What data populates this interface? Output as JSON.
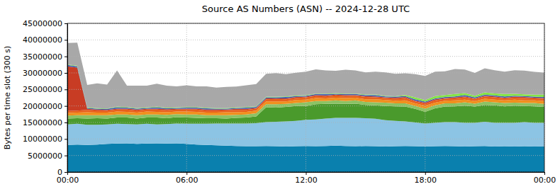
{
  "chart_data": {
    "type": "area",
    "stacked": true,
    "grid": true,
    "title": "Source AS Numbers (ASN) -- 2024-12-28 UTC",
    "y_label": "Bytes per time slot (300 s)",
    "xlim": [
      0,
      24
    ],
    "xticks": [
      {
        "value": 0,
        "label": "00:00"
      },
      {
        "value": 6,
        "label": "06:00"
      },
      {
        "value": 12,
        "label": "12:00"
      },
      {
        "value": 18,
        "label": "18:00"
      },
      {
        "value": 24,
        "label": "00:00"
      }
    ],
    "ylim": [
      0,
      45000000
    ],
    "yticks": [
      0,
      5000000,
      10000000,
      15000000,
      20000000,
      25000000,
      30000000,
      35000000,
      40000000,
      45000000
    ],
    "x": [
      0,
      0.5,
      1,
      1.5,
      2,
      2.5,
      3,
      3.5,
      4,
      4.5,
      5,
      5.5,
      6,
      6.5,
      7,
      7.5,
      8,
      8.5,
      9,
      9.5,
      10,
      10.5,
      11,
      11.5,
      12,
      12.5,
      13,
      13.5,
      14,
      14.5,
      15,
      15.5,
      16,
      16.5,
      17,
      17.5,
      18,
      18.5,
      19,
      19.5,
      20,
      20.5,
      21,
      21.5,
      22,
      22.5,
      23,
      23.5,
      24
    ],
    "series": [
      {
        "color": "#0a80ae",
        "values": [
          8200000,
          8300000,
          8200000,
          8300000,
          8500000,
          8600000,
          8700000,
          8500000,
          8600000,
          8700000,
          8600000,
          8700000,
          8500000,
          8300000,
          8200000,
          8100000,
          8000000,
          7900000,
          7800000,
          7800000,
          7900000,
          7800000,
          7700000,
          7800000,
          7900000,
          7800000,
          7900000,
          8000000,
          7900000,
          7800000,
          7900000,
          7800000,
          7700000,
          7800000,
          7900000,
          7800000,
          7700000,
          7800000,
          7900000,
          7800000,
          7700000,
          7800000,
          7900000,
          7700000,
          7800000,
          7700000,
          7800000,
          7700000,
          7800000
        ]
      },
      {
        "color": "#8cc4e4",
        "values": [
          6200000,
          6300000,
          6100000,
          6000000,
          5900000,
          6000000,
          5800000,
          5900000,
          6000000,
          5700000,
          5900000,
          6000000,
          6100000,
          6300000,
          6400000,
          6600000,
          6700000,
          6800000,
          6900000,
          7000000,
          7200000,
          7400000,
          7600000,
          7700000,
          7900000,
          8100000,
          8300000,
          8400000,
          8500000,
          8600000,
          8400000,
          8300000,
          8000000,
          7700000,
          7400000,
          7200000,
          7000000,
          7100000,
          7200000,
          7300000,
          7200000,
          7100000,
          7300000,
          7200000,
          7100000,
          7200000,
          7300000,
          7200000,
          7100000
        ]
      },
      {
        "color": "#4a9a2c",
        "values": [
          1800000,
          1700000,
          1900000,
          2000000,
          1800000,
          1900000,
          2000000,
          1800000,
          1900000,
          2100000,
          1800000,
          1900000,
          1900000,
          1800000,
          1700000,
          1600000,
          1500000,
          1700000,
          1800000,
          2000000,
          4500000,
          4300000,
          4400000,
          4500000,
          4200000,
          4600000,
          4400000,
          4300000,
          4200000,
          4300000,
          4000000,
          4100000,
          4300000,
          4400000,
          4500000,
          4100000,
          3500000,
          4400000,
          4700000,
          4800000,
          5200000,
          4900000,
          5100000,
          5300000,
          5000000,
          5200000,
          4900000,
          5000000,
          4800000
        ]
      },
      {
        "color": "#8cc264",
        "values": [
          900000,
          900000,
          1000000,
          900000,
          1000000,
          900000,
          900000,
          1000000,
          900000,
          900000,
          1000000,
          900000,
          900000,
          1000000,
          900000,
          900000,
          1000000,
          900000,
          900000,
          1000000,
          900000,
          1000000,
          900000,
          900000,
          1100000,
          1000000,
          900000,
          1000000,
          900000,
          1000000,
          900000,
          900000,
          1000000,
          900000,
          1000000,
          900000,
          1000000,
          900000,
          1000000,
          900000,
          1000000,
          900000,
          1000000,
          900000,
          1000000,
          900000,
          900000,
          1000000,
          900000
        ]
      },
      {
        "color": "#f0901e",
        "values": [
          800000,
          800000,
          900000,
          800000,
          800000,
          900000,
          800000,
          800000,
          900000,
          800000,
          800000,
          800000,
          900000,
          800000,
          800000,
          800000,
          900000,
          800000,
          800000,
          800000,
          900000,
          900000,
          800000,
          900000,
          800000,
          900000,
          800000,
          800000,
          900000,
          800000,
          800000,
          900000,
          800000,
          800000,
          900000,
          800000,
          900000,
          800000,
          800000,
          900000,
          800000,
          800000,
          900000,
          800000,
          800000,
          900000,
          800000,
          800000,
          900000
        ]
      },
      {
        "color": "#e8601a",
        "values": [
          600000,
          600000,
          700000,
          600000,
          600000,
          600000,
          700000,
          600000,
          600000,
          700000,
          600000,
          600000,
          600000,
          700000,
          600000,
          600000,
          600000,
          700000,
          600000,
          600000,
          600000,
          700000,
          600000,
          600000,
          700000,
          600000,
          600000,
          700000,
          600000,
          600000,
          700000,
          600000,
          600000,
          600000,
          700000,
          600000,
          600000,
          700000,
          600000,
          600000,
          700000,
          600000,
          600000,
          700000,
          600000,
          600000,
          700000,
          600000,
          600000
        ]
      },
      {
        "color": "#c83c24",
        "values": [
          13500000,
          13000000,
          300000,
          300000,
          200000,
          300000,
          300000,
          300000,
          200000,
          300000,
          300000,
          200000,
          300000,
          300000,
          300000,
          300000,
          200000,
          300000,
          300000,
          200000,
          300000,
          200000,
          300000,
          300000,
          200000,
          300000,
          300000,
          200000,
          300000,
          200000,
          300000,
          300000,
          200000,
          300000,
          300000,
          200000,
          300000,
          300000,
          200000,
          300000,
          300000,
          200000,
          300000,
          300000,
          200000,
          300000,
          300000,
          200000,
          300000
        ]
      },
      {
        "color": "#4460b4",
        "values": [
          400000,
          400000,
          300000,
          300000,
          300000,
          400000,
          300000,
          300000,
          300000,
          400000,
          300000,
          300000,
          300000,
          300000,
          400000,
          300000,
          300000,
          300000,
          400000,
          300000,
          300000,
          300000,
          400000,
          300000,
          300000,
          300000,
          400000,
          300000,
          300000,
          300000,
          300000,
          400000,
          300000,
          300000,
          300000,
          400000,
          300000,
          300000,
          300000,
          300000,
          400000,
          300000,
          300000,
          300000,
          400000,
          300000,
          300000,
          300000,
          300000
        ]
      },
      {
        "color": "#84e444",
        "values": [
          150000,
          150000,
          150000,
          150000,
          150000,
          150000,
          150000,
          150000,
          150000,
          150000,
          150000,
          150000,
          150000,
          150000,
          150000,
          150000,
          150000,
          150000,
          150000,
          150000,
          150000,
          150000,
          150000,
          150000,
          150000,
          150000,
          150000,
          150000,
          150000,
          150000,
          150000,
          150000,
          150000,
          150000,
          300000,
          600000,
          500000,
          700000,
          600000,
          700000,
          600000,
          500000,
          700000,
          600000,
          700000,
          600000,
          500000,
          600000,
          700000
        ]
      },
      {
        "color": "#a8a8a8",
        "values": [
          6500000,
          7000000,
          6800000,
          7500000,
          7200000,
          11000000,
          6500000,
          6800000,
          6600000,
          7000000,
          6700000,
          6400000,
          6600000,
          6300000,
          6500000,
          6200000,
          6400000,
          6300000,
          6600000,
          6800000,
          7000000,
          7200000,
          6800000,
          6900000,
          7100000,
          7300000,
          7000000,
          6800000,
          7200000,
          7000000,
          6700000,
          6900000,
          7100000,
          6800000,
          6600000,
          7000000,
          7300000,
          7400000,
          7200000,
          7600000,
          7100000,
          6900000,
          7300000,
          7000000,
          6800000,
          7100000,
          7200000,
          6900000,
          6700000
        ]
      }
    ]
  }
}
